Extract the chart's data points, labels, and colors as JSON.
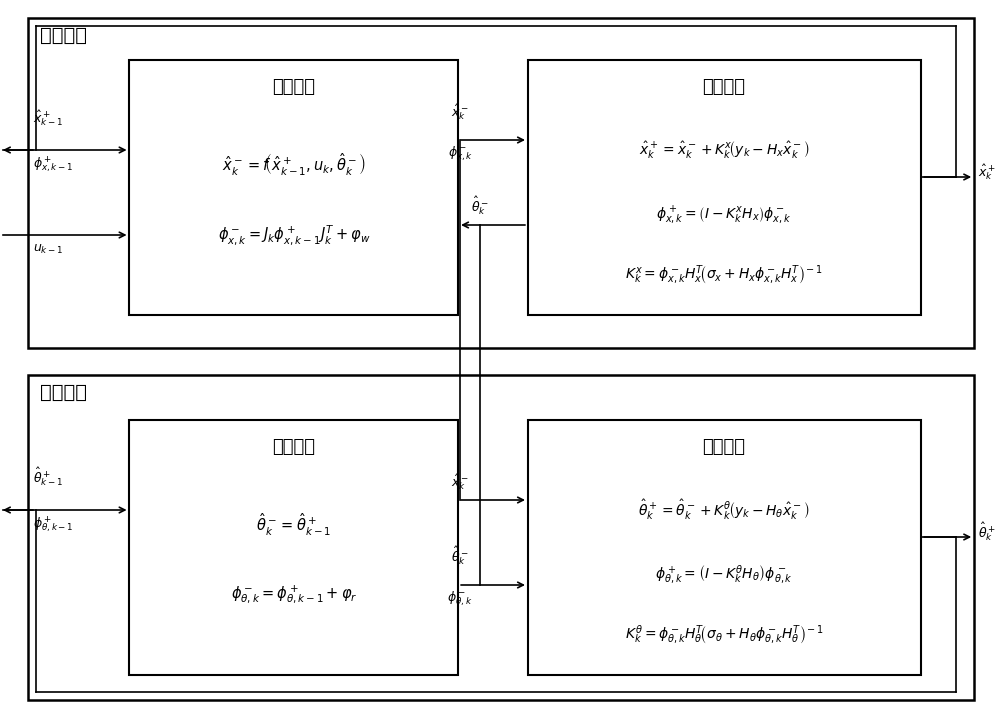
{
  "bg_color": "#ffffff",
  "top_section_label": "状态观测",
  "bottom_section_label": "参数估计",
  "top_left_box_title": "时间更新",
  "top_right_box_title": "量测更新",
  "bot_left_box_title": "时间更新",
  "bot_right_box_title": "量测更新",
  "top_left_eq1": "$\\hat{x}_k^- = f\\!\\left(\\hat{x}_{k-1}^+, u_k, \\hat{\\theta}_k^-\\right)$",
  "top_left_eq2": "$\\phi_{x,k}^- = J_k \\phi_{x,k-1}^+ J_k^T + \\varphi_w$",
  "top_right_eq1": "$\\hat{x}_k^+ = \\hat{x}_k^- + K_k^x\\!\\left(y_k - H_x \\hat{x}_k^-\\right)$",
  "top_right_eq2": "$\\phi_{x,k}^+ = \\left(I - K_k^x H_x\\right)\\phi_{x,k}^-$",
  "top_right_eq3": "$K_k^x = \\phi_{x,k}^- H_x^T\\!\\left(\\sigma_x + H_x \\phi_{x,k}^- H_x^T\\right)^{\\!-1}$",
  "bot_left_eq1": "$\\hat{\\theta}_k^- = \\hat{\\theta}_{k-1}^+$",
  "bot_left_eq2": "$\\phi_{\\theta,k}^- = \\phi_{\\theta,k-1}^+ + \\varphi_r$",
  "bot_right_eq1": "$\\hat{\\theta}_k^+ = \\hat{\\theta}_k^- + K_k^\\theta\\!\\left(y_k - H_\\theta \\hat{x}_k^-\\right)$",
  "bot_right_eq2": "$\\phi_{\\theta,k}^+ = \\left(I - K_k^\\theta H_\\theta\\right)\\phi_{\\theta,k}^-$",
  "bot_right_eq3": "$K_k^\\theta = \\phi_{\\theta,k}^- H_\\theta^T\\!\\left(\\sigma_\\theta + H_\\theta \\phi_{\\theta,k}^- H_\\theta^T\\right)^{\\!-1}$"
}
